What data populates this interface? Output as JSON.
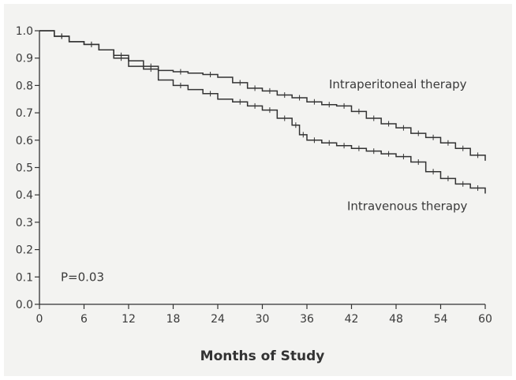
{
  "chart_data": {
    "type": "line",
    "title": "",
    "xlabel": "Months of Study",
    "ylabel": "",
    "xlim": [
      0,
      60
    ],
    "ylim": [
      0,
      1.0
    ],
    "x_ticks": [
      0,
      6,
      12,
      18,
      24,
      30,
      36,
      42,
      48,
      54,
      60
    ],
    "y_ticks": [
      0.0,
      0.1,
      0.2,
      0.3,
      0.4,
      0.5,
      0.6,
      0.7,
      0.8,
      0.9,
      1.0
    ],
    "x_tick_labels": [
      "0",
      "6",
      "12",
      "18",
      "24",
      "30",
      "36",
      "42",
      "48",
      "54",
      "60"
    ],
    "y_tick_labels": [
      "0.0",
      "0.1",
      "0.2",
      "0.3",
      "0.4",
      "0.5",
      "0.6",
      "0.7",
      "0.8",
      "0.9",
      "1.0"
    ],
    "grid": false,
    "series": [
      {
        "name": "Intraperitoneal therapy",
        "color": "#333333",
        "x": [
          0,
          2,
          4,
          6,
          8,
          10,
          12,
          14,
          16,
          18,
          20,
          22,
          24,
          26,
          28,
          30,
          32,
          34,
          36,
          38,
          40,
          42,
          44,
          46,
          48,
          50,
          52,
          54,
          56,
          58,
          60
        ],
        "y": [
          1.0,
          0.98,
          0.96,
          0.95,
          0.93,
          0.91,
          0.89,
          0.87,
          0.855,
          0.85,
          0.845,
          0.84,
          0.83,
          0.81,
          0.79,
          0.78,
          0.765,
          0.755,
          0.74,
          0.73,
          0.725,
          0.705,
          0.68,
          0.66,
          0.645,
          0.625,
          0.61,
          0.59,
          0.57,
          0.545,
          0.525
        ]
      },
      {
        "name": "Intravenous therapy",
        "color": "#333333",
        "x": [
          0,
          2,
          4,
          6,
          8,
          10,
          12,
          14,
          16,
          18,
          20,
          22,
          24,
          26,
          28,
          30,
          32,
          34,
          35,
          36,
          38,
          40,
          42,
          44,
          46,
          48,
          50,
          52,
          54,
          56,
          58,
          60
        ],
        "y": [
          1.0,
          0.98,
          0.96,
          0.95,
          0.93,
          0.9,
          0.87,
          0.86,
          0.82,
          0.8,
          0.785,
          0.77,
          0.75,
          0.74,
          0.725,
          0.71,
          0.68,
          0.655,
          0.62,
          0.6,
          0.59,
          0.58,
          0.57,
          0.56,
          0.55,
          0.54,
          0.52,
          0.485,
          0.46,
          0.44,
          0.425,
          0.405
        ]
      }
    ],
    "annotations": [
      {
        "text": "P=0.03"
      }
    ]
  }
}
